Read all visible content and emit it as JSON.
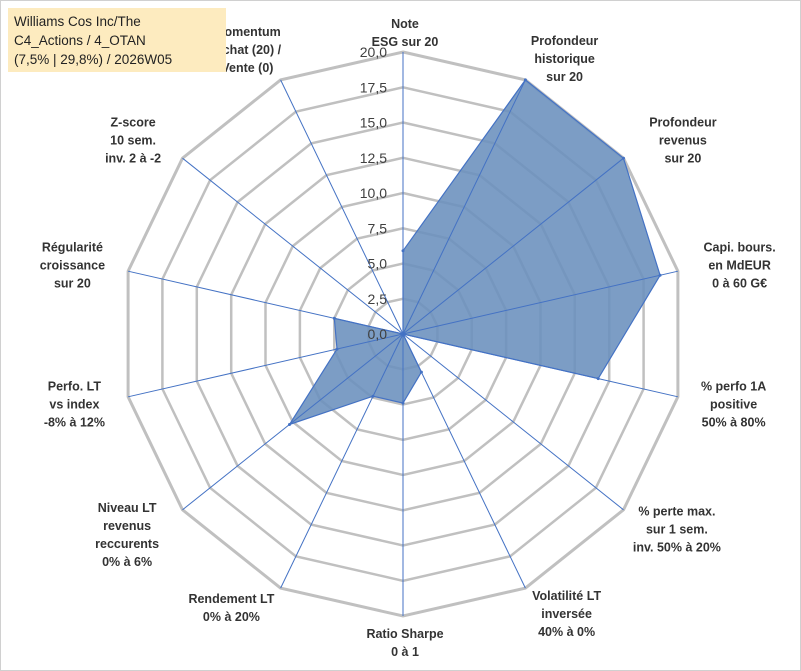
{
  "title_lines": [
    "Williams Cos Inc/The",
    "C4_Actions / 4_OTAN",
    "(7,5% | 29,8%) / 2026W05"
  ],
  "chart_data": {
    "type": "radar",
    "rmin": 0,
    "rmax": 20,
    "rings": 8,
    "ticks": [
      "0,0",
      "2,5",
      "5,0",
      "7,5",
      "10,0",
      "12,5",
      "15,0",
      "17,5",
      "20,0"
    ],
    "colors": {
      "fill": "#6a8fbd",
      "stroke": "#4472c4",
      "grid": "#c0c0c0",
      "spoke": "#4472c4"
    },
    "axes": [
      {
        "label": [
          "Note",
          "ESG sur 20"
        ],
        "value": 5.9
      },
      {
        "label": [
          "Profondeur",
          "historique",
          "sur 20"
        ],
        "value": 20.0
      },
      {
        "label": [
          "Profondeur",
          "revenus",
          "sur 20"
        ],
        "value": 20.0
      },
      {
        "label": [
          "Capi. bours.",
          "en MdEUR",
          "0 à 60 G€"
        ],
        "value": 18.7
      },
      {
        "label": [
          "% perfo 1A",
          "positive",
          "50% à 80%"
        ],
        "value": 14.2
      },
      {
        "label": [
          "% perte max.",
          "sur 1 sem.",
          "inv. 50% à 20%"
        ],
        "value": 0.0
      },
      {
        "label": [
          "Volatilité LT",
          "inversée",
          "40% à 0%"
        ],
        "value": 3.0
      },
      {
        "label": [
          "Ratio Sharpe",
          "0 à 1"
        ],
        "value": 4.9
      },
      {
        "label": [
          "Rendement LT",
          "0% à 20%"
        ],
        "value": 4.9
      },
      {
        "label": [
          "Niveau LT",
          "revenus",
          "reccurents",
          "0% à 6%"
        ],
        "value": 10.3
      },
      {
        "label": [
          "Perfo. LT",
          "vs index",
          "-8% à 12%"
        ],
        "value": 4.8
      },
      {
        "label": [
          "Régularité",
          "croissance",
          "sur 20"
        ],
        "value": 5.0
      },
      {
        "label": [
          "Z-score",
          "10 sem.",
          "inv. 2 à -2"
        ],
        "value": 0.0
      },
      {
        "label": [
          "Momentum",
          "Achat (20) /",
          "Vente (0)"
        ],
        "value": 0.0
      }
    ]
  }
}
